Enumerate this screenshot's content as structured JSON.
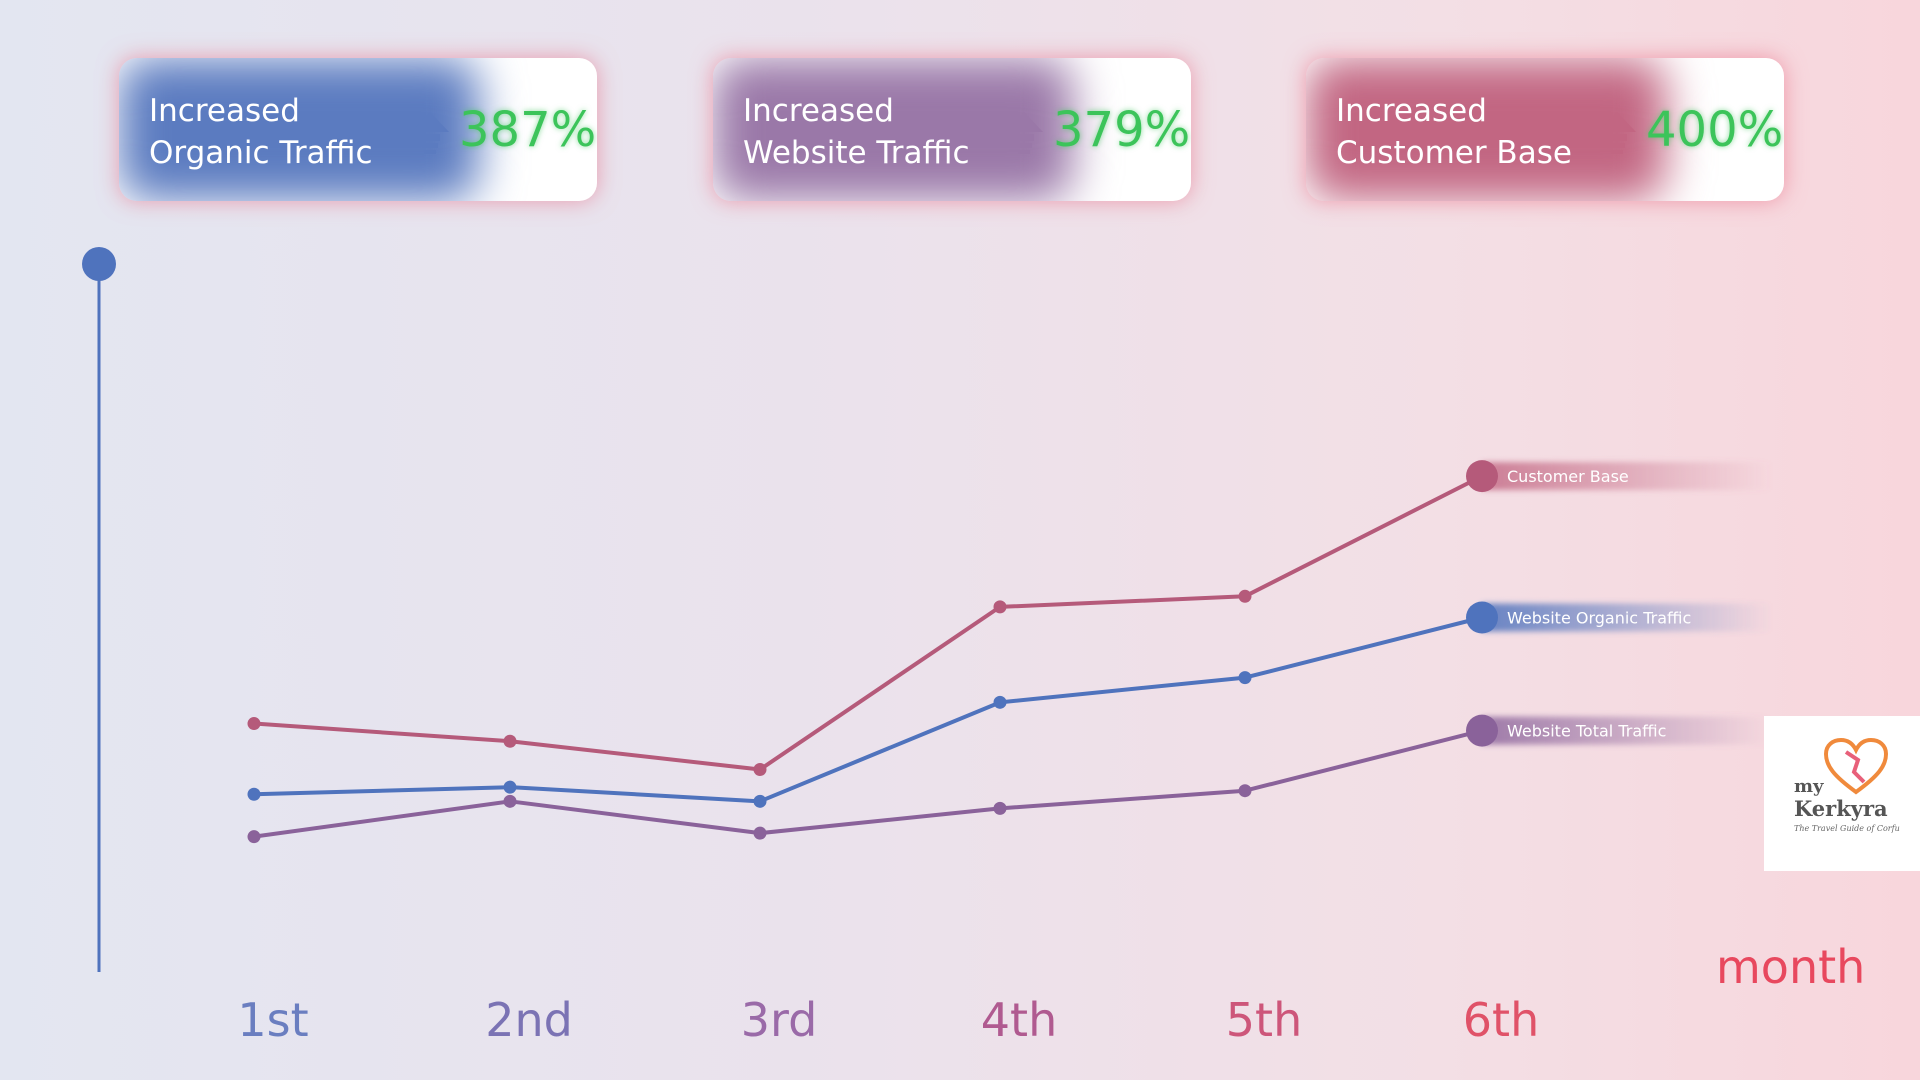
{
  "cards": [
    {
      "label": "Increased\nOrganic Traffic",
      "value": "387%",
      "color": "#5b7bc0"
    },
    {
      "label": "Increased\nWebsite Traffic",
      "value": "379%",
      "color": "#9a78a8"
    },
    {
      "label": "Increased\nCustomer Base",
      "value": "400%",
      "color": "#c26682"
    }
  ],
  "chart_data": {
    "type": "line",
    "categories": [
      "1st",
      "2nd",
      "3rd",
      "4th",
      "5th",
      "6th"
    ],
    "xlabel": "month",
    "ylabel": "",
    "ylim": [
      0,
      100
    ],
    "grid": false,
    "series": [
      {
        "name": "Customer Base",
        "color": "#b55a7a",
        "values": [
          35,
          32.5,
          28.5,
          51.5,
          53,
          70
        ]
      },
      {
        "name": "Website Organic Traffic",
        "color": "#4f73bd",
        "values": [
          25,
          26,
          24,
          38,
          41.5,
          50
        ]
      },
      {
        "name": "Website Total Traffic",
        "color": "#8a629a",
        "values": [
          19,
          24,
          19.5,
          23,
          25.5,
          34
        ]
      }
    ],
    "tick_colors": [
      "#6a7ec0",
      "#7b73b4",
      "#9a6aa8",
      "#b05a90",
      "#cd567a",
      "#e05268"
    ],
    "xlabel_color": "#e8485e"
  },
  "logo": {
    "line1": "my",
    "line2": "Kerkyra",
    "tagline": "The Travel Guide of Corfu"
  }
}
